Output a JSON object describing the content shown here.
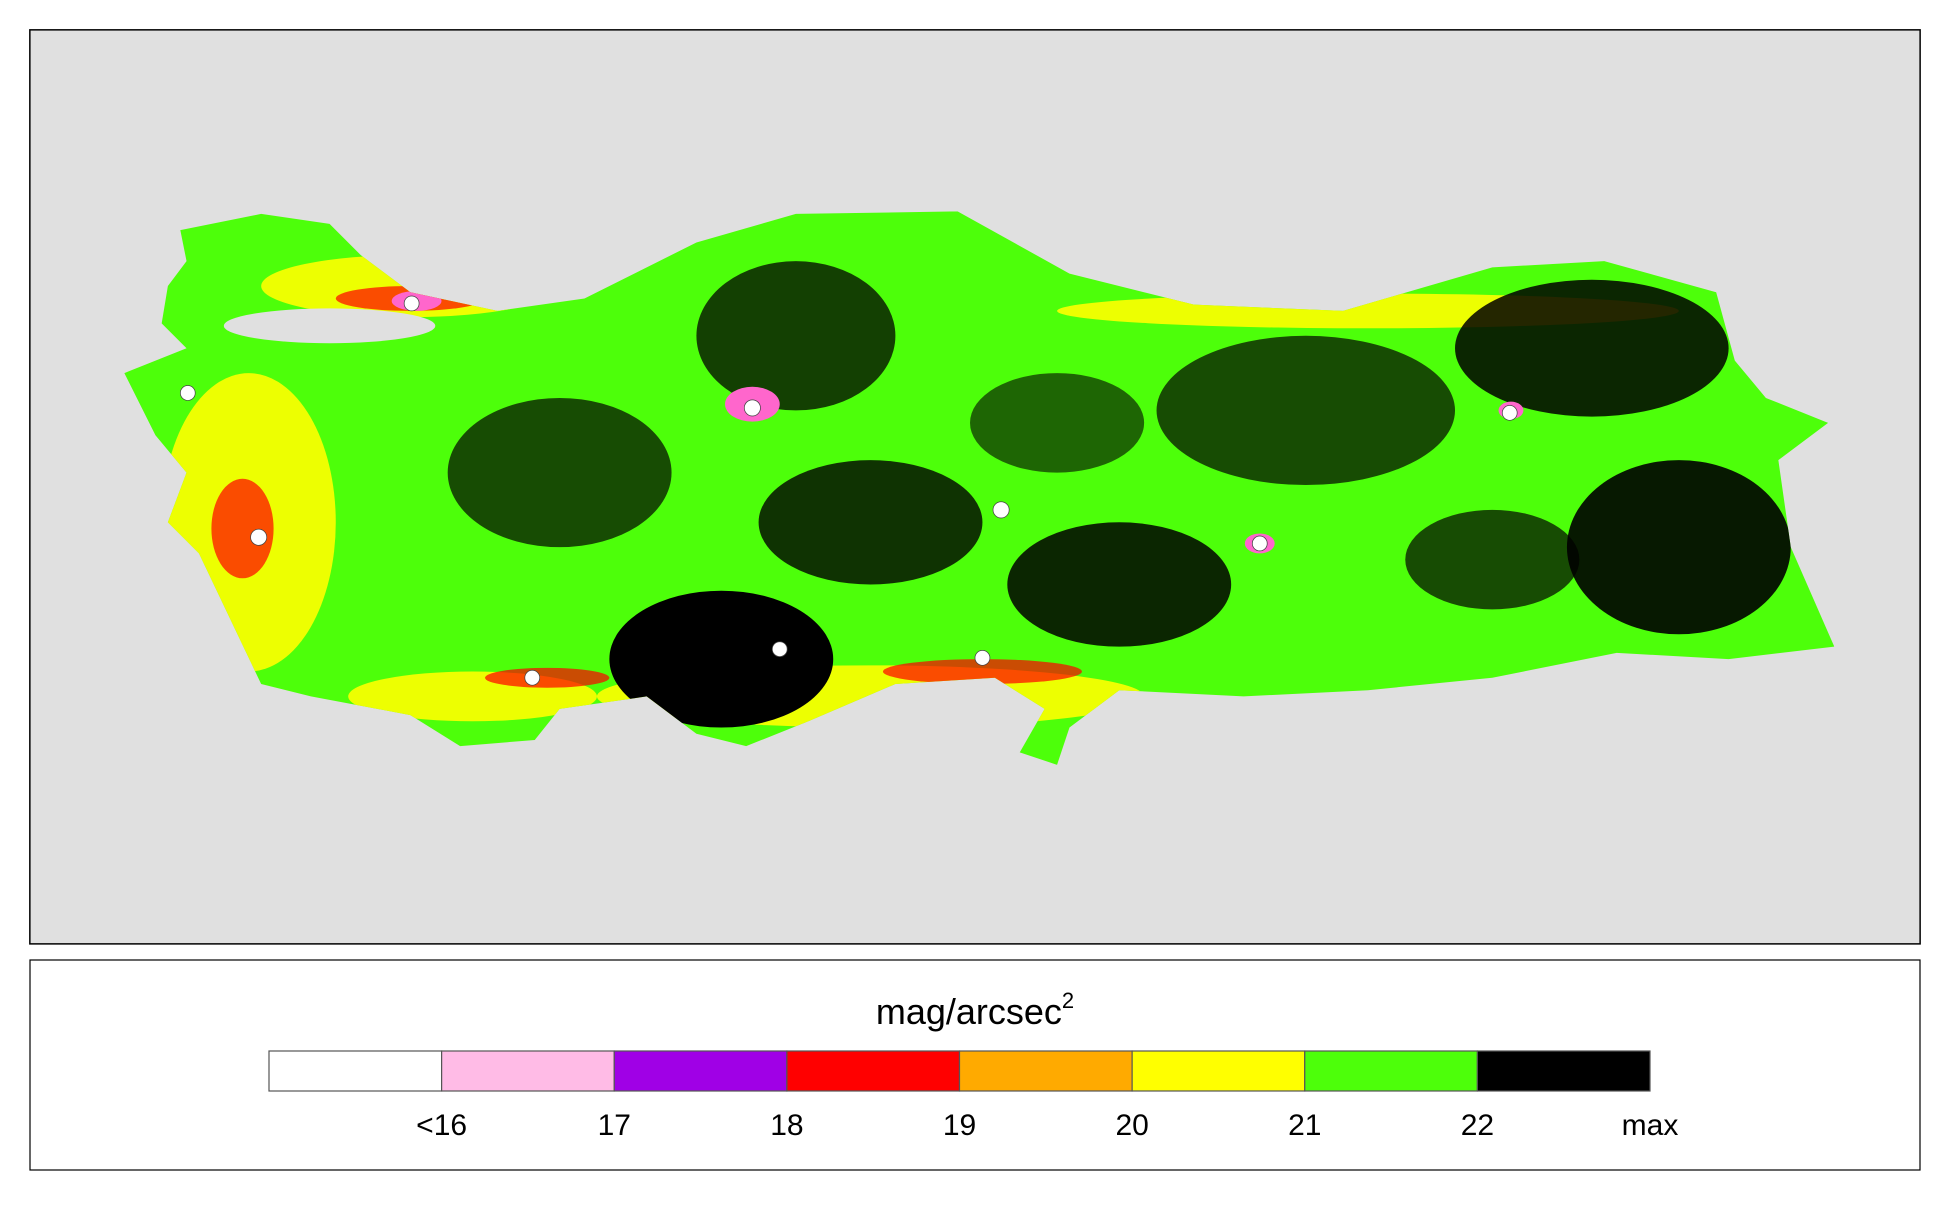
{
  "legend": {
    "title": "mag/arcsec",
    "title_sup": "2",
    "classes": [
      {
        "color": "#ffffff",
        "label": "<16"
      },
      {
        "color": "#ffbbe6",
        "label": "17"
      },
      {
        "color": "#a000e6",
        "label": "18"
      },
      {
        "color": "#ff0000",
        "label": "19"
      },
      {
        "color": "#ffaa00",
        "label": "20"
      },
      {
        "color": "#ffff00",
        "label": "21"
      },
      {
        "color": "#4dff0a",
        "label": "22"
      },
      {
        "color": "#000000",
        "label": "max"
      }
    ]
  }
}
